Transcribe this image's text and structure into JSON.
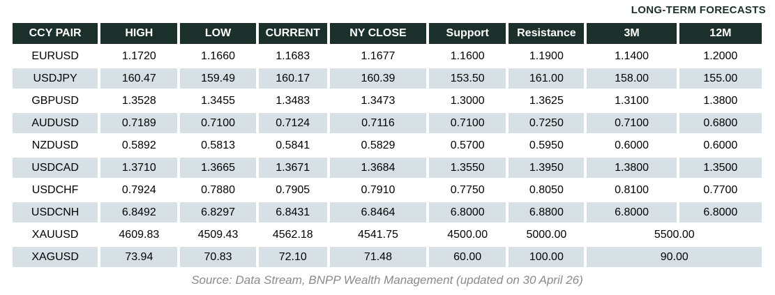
{
  "header_note": "LONG-TERM FORECASTS",
  "chart_data": {
    "type": "table",
    "title": "LONG-TERM FORECASTS",
    "columns": [
      "CCY PAIR",
      "HIGH",
      "LOW",
      "CURRENT",
      "NY CLOSE",
      "Support",
      "Resistance",
      "3M",
      "12M"
    ],
    "rows": [
      {
        "pair": "EURUSD",
        "values": [
          "1.1720",
          "1.1660",
          "1.1683",
          "1.1677",
          "1.1600",
          "1.1900",
          "1.1400",
          "1.2000"
        ],
        "merged_forecast": false
      },
      {
        "pair": "USDJPY",
        "values": [
          "160.47",
          "159.49",
          "160.17",
          "160.39",
          "153.50",
          "161.00",
          "158.00",
          "155.00"
        ],
        "merged_forecast": false
      },
      {
        "pair": "GBPUSD",
        "values": [
          "1.3528",
          "1.3455",
          "1.3483",
          "1.3473",
          "1.3000",
          "1.3625",
          "1.3100",
          "1.3800"
        ],
        "merged_forecast": false
      },
      {
        "pair": "AUDUSD",
        "values": [
          "0.7189",
          "0.7100",
          "0.7124",
          "0.7116",
          "0.7100",
          "0.7250",
          "0.7100",
          "0.6800"
        ],
        "merged_forecast": false
      },
      {
        "pair": "NZDUSD",
        "values": [
          "0.5892",
          "0.5813",
          "0.5841",
          "0.5829",
          "0.5700",
          "0.5950",
          "0.6000",
          "0.6000"
        ],
        "merged_forecast": false
      },
      {
        "pair": "USDCAD",
        "values": [
          "1.3710",
          "1.3665",
          "1.3671",
          "1.3684",
          "1.3550",
          "1.3950",
          "1.3800",
          "1.3500"
        ],
        "merged_forecast": false
      },
      {
        "pair": "USDCHF",
        "values": [
          "0.7924",
          "0.7880",
          "0.7905",
          "0.7910",
          "0.7750",
          "0.8050",
          "0.8100",
          "0.7700"
        ],
        "merged_forecast": false
      },
      {
        "pair": "USDCNH",
        "values": [
          "6.8492",
          "6.8297",
          "6.8431",
          "6.8464",
          "6.8000",
          "6.8800",
          "6.8000",
          "6.8000"
        ],
        "merged_forecast": false
      },
      {
        "pair": "XAUUSD",
        "values": [
          "4609.83",
          "4509.43",
          "4562.18",
          "4541.75",
          "4500.00",
          "5000.00",
          "5500.00"
        ],
        "merged_forecast": true
      },
      {
        "pair": "XAGUSD",
        "values": [
          "73.94",
          "70.83",
          "72.10",
          "71.48",
          "60.00",
          "100.00",
          "90.00"
        ],
        "merged_forecast": true
      }
    ],
    "source_note": "Source: Data Stream, BNPP Wealth Management (updated on 30 April 26)"
  },
  "footer": {
    "source": "Source: Data Stream, BNPP Wealth Management (updated on 30 April 26)"
  },
  "colors": {
    "header_bg": "#1c302b",
    "header_text": "#ffffff",
    "row_stripe": "#d7e1e5",
    "note_text": "#1c302b",
    "source_text": "#8a8a8a"
  }
}
